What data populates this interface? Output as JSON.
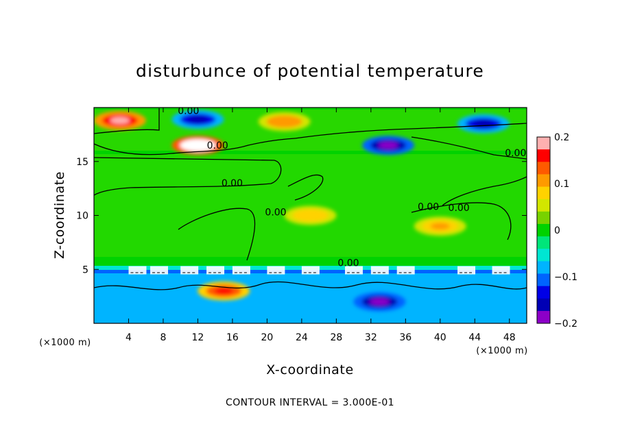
{
  "chart_data": {
    "type": "heatmap",
    "title": "disturbunce of potential temperature",
    "xlabel": "X-coordinate",
    "ylabel": "Z-coordinate",
    "x_unit": "(×1000 m)",
    "y_unit": "(×1000 m)",
    "xlim": [
      0,
      50
    ],
    "ylim": [
      0,
      20
    ],
    "x_ticks": [
      "4",
      "8",
      "12",
      "16",
      "20",
      "24",
      "28",
      "32",
      "36",
      "40",
      "44",
      "48"
    ],
    "y_ticks": [
      "5",
      "10",
      "15"
    ],
    "colorbar": {
      "range": [
        -0.2,
        0.2
      ],
      "ticks": [
        "0.2",
        "0.1",
        "0",
        "−0.1",
        "−0.2"
      ],
      "colors": [
        "#ffb0b0",
        "#ff0000",
        "#ff5a00",
        "#ff9a00",
        "#ffd200",
        "#d2e600",
        "#78d200",
        "#00d200",
        "#00e67a",
        "#00e6d2",
        "#00b4ff",
        "#0064ff",
        "#0000e6",
        "#0000b4",
        "#8c00c8"
      ]
    },
    "contour_labels": [
      "0.00",
      "0.00",
      "0.00",
      "0.00",
      "0.00",
      "0.00",
      "0.00",
      "0.00"
    ],
    "annotation": "CONTOUR INTERVAL = 3.000E-01",
    "field_features": [
      {
        "x": 3,
        "z": 18.8,
        "value": 0.18
      },
      {
        "x": 12,
        "z": 16.5,
        "value": 0.25
      },
      {
        "x": 12,
        "z": 18.9,
        "value": -0.15
      },
      {
        "x": 22,
        "z": 18.7,
        "value": 0.12
      },
      {
        "x": 34,
        "z": 16.5,
        "value": -0.2
      },
      {
        "x": 45,
        "z": 18.5,
        "value": -0.15
      },
      {
        "x": 25,
        "z": 10,
        "value": 0.08
      },
      {
        "x": 40,
        "z": 9,
        "value": 0.1
      },
      {
        "x": 15,
        "z": 3,
        "value": 0.15
      },
      {
        "x": 33,
        "z": 2,
        "value": -0.2
      }
    ]
  }
}
